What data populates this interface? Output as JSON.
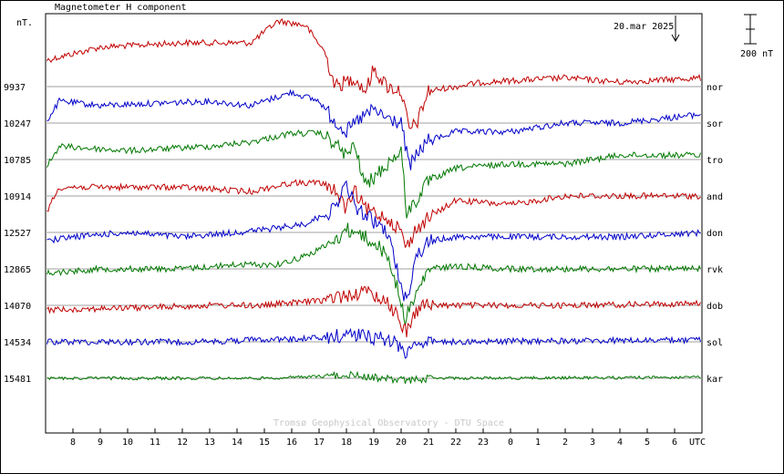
{
  "chart_data": {
    "type": "line",
    "title": "Magnetometer H component",
    "ylabel": "nT.",
    "date_label": "20.mar 2025",
    "scale_label": "200 nT",
    "scale_bar_nT": 200,
    "footer": "Tromsø Geophysical Observatory - DTU Space",
    "x_unit_label": "UTC",
    "x_ticks": [
      "8",
      "9",
      "10",
      "11",
      "12",
      "13",
      "14",
      "15",
      "16",
      "17",
      "18",
      "19",
      "20",
      "21",
      "22",
      "23",
      "0",
      "1",
      "2",
      "3",
      "4",
      "5",
      "6"
    ],
    "x_range_hours_utc": [
      7.0,
      31.0
    ],
    "grid": "horizontal baselines per station",
    "colors": {
      "red": "#c00000",
      "blue": "#0000c8",
      "green": "#007800",
      "grid": "#a0a0a0"
    },
    "series": [
      {
        "name": "nor",
        "baseline_nT": "9937",
        "color": "red",
        "amp": 1.0,
        "keys": [
          [
            7.0,
            -30
          ],
          [
            9.0,
            -45
          ],
          [
            12.0,
            -50
          ],
          [
            14.5,
            -50
          ],
          [
            15.5,
            -75
          ],
          [
            16.5,
            -70
          ],
          [
            17.2,
            -40
          ],
          [
            17.6,
            0
          ],
          [
            18.3,
            -10
          ],
          [
            18.7,
            5
          ],
          [
            19.0,
            -20
          ],
          [
            19.5,
            0
          ],
          [
            20.0,
            5
          ],
          [
            20.3,
            50
          ],
          [
            20.6,
            40
          ],
          [
            21.0,
            5
          ],
          [
            23.0,
            -5
          ],
          [
            26.0,
            -10
          ],
          [
            28.0,
            -5
          ],
          [
            31.0,
            -10
          ]
        ]
      },
      {
        "name": "sor",
        "baseline_nT": "10247",
        "color": "blue",
        "amp": 1.0,
        "keys": [
          [
            7.0,
            0
          ],
          [
            7.5,
            -25
          ],
          [
            9.0,
            -20
          ],
          [
            13.0,
            -25
          ],
          [
            14.5,
            -20
          ],
          [
            16.0,
            -35
          ],
          [
            17.0,
            -25
          ],
          [
            17.5,
            -5
          ],
          [
            18.0,
            10
          ],
          [
            18.5,
            -5
          ],
          [
            19.0,
            -15
          ],
          [
            19.5,
            -5
          ],
          [
            20.0,
            0
          ],
          [
            20.3,
            50
          ],
          [
            20.7,
            30
          ],
          [
            21.0,
            20
          ],
          [
            22.0,
            10
          ],
          [
            24.0,
            10
          ],
          [
            26.0,
            0
          ],
          [
            28.0,
            0
          ],
          [
            31.0,
            -10
          ]
        ]
      },
      {
        "name": "tro",
        "baseline_nT": "10785",
        "color": "green",
        "amp": 1.0,
        "keys": [
          [
            7.0,
            10
          ],
          [
            7.5,
            -15
          ],
          [
            10.0,
            -10
          ],
          [
            13.0,
            -15
          ],
          [
            14.5,
            -20
          ],
          [
            16.0,
            -30
          ],
          [
            17.0,
            -30
          ],
          [
            17.5,
            -20
          ],
          [
            18.0,
            -5
          ],
          [
            18.3,
            -15
          ],
          [
            18.7,
            30
          ],
          [
            19.5,
            5
          ],
          [
            20.0,
            -10
          ],
          [
            20.2,
            60
          ],
          [
            20.5,
            50
          ],
          [
            21.0,
            25
          ],
          [
            22.0,
            10
          ],
          [
            24.0,
            5
          ],
          [
            26.0,
            5
          ],
          [
            28.0,
            -5
          ],
          [
            31.0,
            -5
          ]
        ]
      },
      {
        "name": "and",
        "baseline_nT": "10914",
        "color": "red",
        "amp": 1.0,
        "keys": [
          [
            7.0,
            20
          ],
          [
            7.5,
            -10
          ],
          [
            12.0,
            -10
          ],
          [
            14.5,
            -5
          ],
          [
            16.0,
            -15
          ],
          [
            17.0,
            -15
          ],
          [
            17.5,
            -10
          ],
          [
            18.0,
            15
          ],
          [
            18.3,
            -5
          ],
          [
            18.7,
            15
          ],
          [
            19.5,
            25
          ],
          [
            20.0,
            40
          ],
          [
            20.2,
            60
          ],
          [
            20.5,
            40
          ],
          [
            21.0,
            25
          ],
          [
            22.0,
            5
          ],
          [
            24.0,
            10
          ],
          [
            26.0,
            0
          ],
          [
            28.0,
            0
          ],
          [
            31.0,
            0
          ]
        ]
      },
      {
        "name": "don",
        "baseline_nT": "12527",
        "color": "blue",
        "amp": 1.0,
        "keys": [
          [
            7.0,
            10
          ],
          [
            8.0,
            5
          ],
          [
            10.0,
            0
          ],
          [
            12.0,
            5
          ],
          [
            14.0,
            0
          ],
          [
            15.5,
            -5
          ],
          [
            16.5,
            -10
          ],
          [
            17.5,
            -25
          ],
          [
            18.0,
            -55
          ],
          [
            18.3,
            -30
          ],
          [
            18.7,
            -20
          ],
          [
            19.5,
            0
          ],
          [
            20.0,
            60
          ],
          [
            20.2,
            80
          ],
          [
            20.5,
            30
          ],
          [
            21.0,
            10
          ],
          [
            22.0,
            5
          ],
          [
            24.0,
            5
          ],
          [
            26.0,
            5
          ],
          [
            28.0,
            5
          ],
          [
            31.0,
            0
          ]
        ]
      },
      {
        "name": "rvk",
        "baseline_nT": "12865",
        "color": "green",
        "amp": 1.0,
        "keys": [
          [
            7.0,
            5
          ],
          [
            9.0,
            0
          ],
          [
            12.0,
            0
          ],
          [
            14.0,
            -5
          ],
          [
            15.5,
            -5
          ],
          [
            16.5,
            -15
          ],
          [
            17.5,
            -30
          ],
          [
            18.0,
            -45
          ],
          [
            18.5,
            -40
          ],
          [
            19.0,
            -30
          ],
          [
            19.5,
            -15
          ],
          [
            20.0,
            35
          ],
          [
            20.1,
            60
          ],
          [
            20.4,
            40
          ],
          [
            21.0,
            0
          ],
          [
            22.0,
            -3
          ],
          [
            24.0,
            0
          ],
          [
            26.0,
            0
          ],
          [
            28.0,
            0
          ],
          [
            31.0,
            0
          ]
        ]
      },
      {
        "name": "dob",
        "baseline_nT": "14070",
        "color": "red",
        "amp": 1.0,
        "keys": [
          [
            7.0,
            5
          ],
          [
            10.0,
            3
          ],
          [
            13.0,
            0
          ],
          [
            15.0,
            0
          ],
          [
            16.0,
            -3
          ],
          [
            17.0,
            -5
          ],
          [
            18.0,
            -12
          ],
          [
            18.8,
            -15
          ],
          [
            19.5,
            -5
          ],
          [
            20.0,
            20
          ],
          [
            20.2,
            30
          ],
          [
            20.4,
            15
          ],
          [
            20.7,
            0
          ],
          [
            22.0,
            0
          ],
          [
            26.0,
            0
          ],
          [
            31.0,
            -2
          ]
        ]
      },
      {
        "name": "sol",
        "baseline_nT": "14534",
        "color": "blue",
        "amp": 1.0,
        "keys": [
          [
            7.0,
            0
          ],
          [
            10.0,
            0
          ],
          [
            13.0,
            0
          ],
          [
            15.0,
            -3
          ],
          [
            16.0,
            -3
          ],
          [
            17.5,
            -5
          ],
          [
            18.0,
            -10
          ],
          [
            19.0,
            -5
          ],
          [
            19.5,
            -3
          ],
          [
            20.0,
            5
          ],
          [
            20.2,
            15
          ],
          [
            20.4,
            0
          ],
          [
            21.0,
            0
          ],
          [
            31.0,
            -2
          ]
        ]
      },
      {
        "name": "kar",
        "baseline_nT": "15481",
        "color": "green",
        "amp": 0.5,
        "keys": [
          [
            7.0,
            0
          ],
          [
            12.0,
            0
          ],
          [
            15.0,
            0
          ],
          [
            17.0,
            -2
          ],
          [
            18.0,
            -4
          ],
          [
            19.0,
            -1
          ],
          [
            20.0,
            2
          ],
          [
            20.2,
            3
          ],
          [
            21.0,
            0
          ],
          [
            31.0,
            -1
          ]
        ]
      }
    ]
  }
}
